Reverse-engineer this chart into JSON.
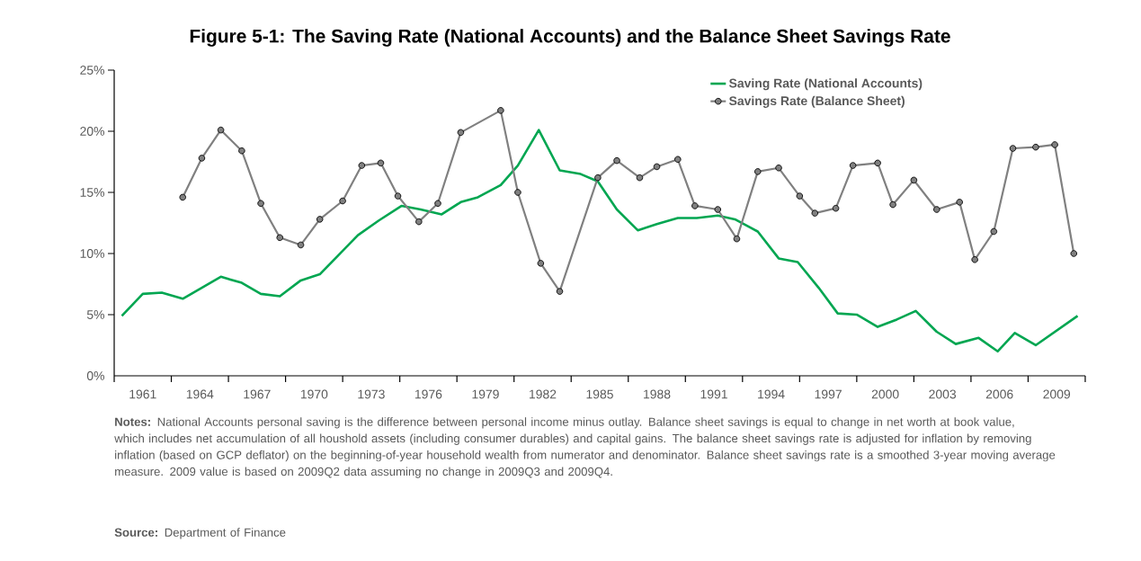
{
  "chart_data": {
    "type": "line",
    "title": "Figure 5-1: The Saving Rate (National Accounts) and the Balance Sheet Savings Rate",
    "xlim": [
      1959.5,
      2010.5
    ],
    "xticks": [
      1961,
      1964,
      1967,
      1970,
      1973,
      1976,
      1979,
      1982,
      1985,
      1988,
      1991,
      1994,
      1997,
      2000,
      2003,
      2006,
      2009
    ],
    "ylim": [
      0,
      25
    ],
    "yticks": [
      {
        "value": 0,
        "label": "0%"
      },
      {
        "value": 5,
        "label": "5%"
      },
      {
        "value": 10,
        "label": "10%"
      },
      {
        "value": 15,
        "label": "15%"
      },
      {
        "value": 20,
        "label": "20%"
      },
      {
        "value": 25,
        "label": "25%"
      }
    ],
    "grid": false,
    "legend": "top right",
    "series": [
      {
        "name": "Saving Rate (National Accounts)",
        "color": "#00a651",
        "marker": "none",
        "x": [
          1959.9,
          1961.0,
          1962.0,
          1963.1,
          1964.1,
          1965.1,
          1966.2,
          1967.2,
          1968.2,
          1969.3,
          1970.3,
          1971.3,
          1972.3,
          1973.4,
          1974.6,
          1975.6,
          1976.7,
          1977.7,
          1978.6,
          1979.8,
          1980.7,
          1981.8,
          1982.9,
          1984.0,
          1984.9,
          1985.9,
          1987.0,
          1988.0,
          1989.1,
          1990.1,
          1991.2,
          1992.1,
          1993.3,
          1994.4,
          1995.4,
          1996.5,
          1997.5,
          1998.5,
          1999.6,
          2000.6,
          2001.6,
          2002.7,
          2003.7,
          2004.9,
          2005.9,
          2006.8,
          2007.9,
          2009.0,
          2010.1
        ],
        "values": [
          4.9,
          6.7,
          6.8,
          6.3,
          7.2,
          8.1,
          7.6,
          6.7,
          6.5,
          7.8,
          8.3,
          9.9,
          11.5,
          12.7,
          13.9,
          13.6,
          13.2,
          14.2,
          14.6,
          15.6,
          17.2,
          20.1,
          16.8,
          16.5,
          15.9,
          13.6,
          11.9,
          12.4,
          12.9,
          12.9,
          13.1,
          12.8,
          11.8,
          9.6,
          9.3,
          7.2,
          5.1,
          5.0,
          4.0,
          4.6,
          5.3,
          3.6,
          2.6,
          3.1,
          2.0,
          3.5,
          2.5,
          3.7,
          4.9
        ]
      },
      {
        "name": "Savings Rate (Balance Sheet)",
        "color": "#808080",
        "marker": "circle",
        "x": [
          1963.1,
          1964.1,
          1965.1,
          1966.2,
          1967.2,
          1968.2,
          1969.3,
          1970.3,
          1971.5,
          1972.5,
          1973.5,
          1974.4,
          1975.5,
          1976.5,
          1977.7,
          1979.8,
          1980.7,
          1981.9,
          1982.9,
          1984.9,
          1985.9,
          1987.1,
          1988.0,
          1989.1,
          1990.0,
          1991.2,
          1992.2,
          1993.3,
          1994.4,
          1995.5,
          1996.3,
          1997.4,
          1998.3,
          1999.6,
          2000.4,
          2001.5,
          2002.7,
          2003.9,
          2004.7,
          2005.7,
          2006.7,
          2007.9,
          2008.9,
          2009.9
        ],
        "values": [
          14.6,
          17.8,
          20.1,
          18.4,
          14.1,
          11.3,
          10.7,
          12.8,
          14.3,
          17.2,
          17.4,
          14.7,
          12.6,
          14.1,
          19.9,
          21.7,
          15.0,
          9.2,
          6.9,
          16.2,
          17.6,
          16.2,
          17.1,
          17.7,
          13.9,
          13.6,
          11.2,
          16.7,
          17.0,
          14.7,
          13.3,
          13.7,
          17.2,
          17.4,
          14.0,
          16.0,
          13.6,
          14.2,
          9.5,
          11.8,
          18.6,
          18.7,
          18.9,
          10.0
        ]
      }
    ],
    "annotations": [
      "**Notes:** National Accounts personal saving is the difference between personal income minus outlay. Balance sheet savings is equal to change in net worth at book value, which includes net accumulation of all houshold assets (including consumer durables) and capital gains. The balance sheet savings rate is adjusted for inflation by removing inflation (based on GCP deflator) on the beginning-of-year household wealth from numerator and denominator. Balance sheet savings rate is a smoothed 3-year moving average measure. 2009 value is based on 2009Q2 data assuming no change in 2009Q3 and 2009Q4.",
      "**Source:** Department of Finance"
    ]
  }
}
